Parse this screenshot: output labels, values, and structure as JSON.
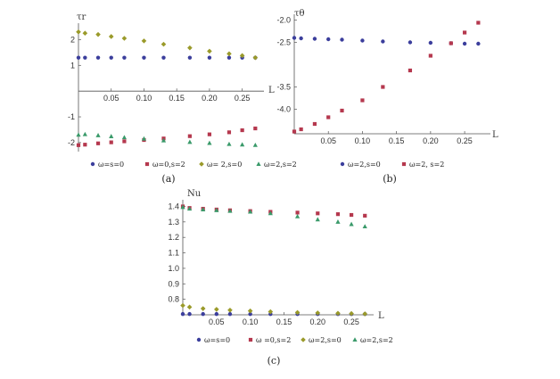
{
  "chart_data": [
    {
      "type": "scatter",
      "panel_label": "(a)",
      "ylabel": "τr",
      "xlabel": "L",
      "xlim": [
        0,
        0.275
      ],
      "ylim": [
        -2.35,
        2.5
      ],
      "x_ticks": [
        0.05,
        0.1,
        0.15,
        0.2,
        0.25
      ],
      "x_tick_labels": [
        "0.05",
        "0.10",
        "0.15",
        "0.20",
        "0.25"
      ],
      "y_ticks": [
        2,
        1,
        -1,
        -2
      ],
      "y_tick_labels": [
        "2",
        "1",
        "-1",
        "-2"
      ],
      "legend_position": "bottom",
      "series": [
        {
          "name": "ω=s=0",
          "color": "#3b3e9c",
          "marker": "circle",
          "x": [
            0.0,
            0.01,
            0.03,
            0.05,
            0.07,
            0.1,
            0.13,
            0.17,
            0.2,
            0.23,
            0.25,
            0.27
          ],
          "y": [
            1.3,
            1.3,
            1.3,
            1.3,
            1.3,
            1.3,
            1.3,
            1.3,
            1.3,
            1.3,
            1.3,
            1.3
          ]
        },
        {
          "name": "ω=0,s=2",
          "color": "#b5384e",
          "marker": "square",
          "x": [
            0.0,
            0.01,
            0.03,
            0.05,
            0.07,
            0.1,
            0.13,
            0.17,
            0.2,
            0.23,
            0.25,
            0.27
          ],
          "y": [
            -2.1,
            -2.08,
            -2.03,
            -1.99,
            -1.95,
            -1.9,
            -1.84,
            -1.75,
            -1.68,
            -1.6,
            -1.52,
            -1.45
          ]
        },
        {
          "name": "ω= 2,s=0",
          "color": "#9a9a2a",
          "marker": "diamond",
          "x": [
            0.0,
            0.01,
            0.03,
            0.05,
            0.07,
            0.1,
            0.13,
            0.17,
            0.2,
            0.23,
            0.25,
            0.27
          ],
          "y": [
            2.3,
            2.25,
            2.2,
            2.12,
            2.05,
            1.95,
            1.82,
            1.68,
            1.55,
            1.45,
            1.38,
            1.3
          ]
        },
        {
          "name": "ω=2,s=2",
          "color": "#3a9a6a",
          "marker": "triangle",
          "x": [
            0.0,
            0.01,
            0.03,
            0.05,
            0.07,
            0.1,
            0.13,
            0.17,
            0.2,
            0.23,
            0.25,
            0.27
          ],
          "y": [
            -1.7,
            -1.68,
            -1.72,
            -1.76,
            -1.8,
            -1.85,
            -1.92,
            -1.98,
            -2.02,
            -2.06,
            -2.08,
            -2.1
          ]
        }
      ]
    },
    {
      "type": "scatter",
      "panel_label": "(b)",
      "ylabel": "τθ",
      "xlabel": "L",
      "xlim": [
        0,
        0.28
      ],
      "ylim": [
        -4.55,
        -1.95
      ],
      "x_ticks": [
        0.05,
        0.1,
        0.15,
        0.2,
        0.25
      ],
      "x_tick_labels": [
        "0.05",
        "0.10",
        "0.15",
        "0.20",
        "0.25"
      ],
      "y_ticks": [
        -2.0,
        -2.5,
        -3.5,
        -4.0
      ],
      "y_tick_labels": [
        "-2.0",
        "-2.5",
        "-3.5",
        "-4.0"
      ],
      "legend_position": "bottom",
      "series": [
        {
          "name": "ω=2,s=0",
          "color": "#3b3e9c",
          "marker": "circle",
          "x": [
            0.0,
            0.01,
            0.03,
            0.05,
            0.07,
            0.1,
            0.13,
            0.17,
            0.2,
            0.23,
            0.25,
            0.27
          ],
          "y": [
            -2.4,
            -2.41,
            -2.42,
            -2.43,
            -2.44,
            -2.46,
            -2.48,
            -2.5,
            -2.51,
            -2.52,
            -2.53,
            -2.53
          ]
        },
        {
          "name": "ω=2, s=2",
          "color": "#b5384e",
          "marker": "square",
          "x": [
            0.0,
            0.01,
            0.03,
            0.05,
            0.07,
            0.1,
            0.13,
            0.17,
            0.2,
            0.23,
            0.25,
            0.27
          ],
          "y": [
            -4.5,
            -4.45,
            -4.33,
            -4.18,
            -4.03,
            -3.8,
            -3.5,
            -3.13,
            -2.8,
            -2.52,
            -2.28,
            -2.06
          ]
        }
      ]
    },
    {
      "type": "scatter",
      "panel_label": "(c)",
      "ylabel": "Nu",
      "xlabel": "L",
      "xlim": [
        0,
        0.275
      ],
      "ylim": [
        0.7,
        1.42
      ],
      "x_ticks": [
        0.05,
        0.1,
        0.15,
        0.2,
        0.25
      ],
      "x_tick_labels": [
        "0.05",
        "0.10",
        "0.15",
        "0.20",
        "0.25"
      ],
      "y_ticks": [
        0.8,
        0.9,
        1.0,
        1.1,
        1.2,
        1.3,
        1.4
      ],
      "y_tick_labels": [
        "0.8",
        "0.9",
        "1.0",
        "1.1",
        "1.2",
        "1.3",
        "1.4"
      ],
      "legend_position": "bottom",
      "series": [
        {
          "name": "ω=s=0",
          "color": "#3b3e9c",
          "marker": "circle",
          "x": [
            0.0,
            0.01,
            0.03,
            0.05,
            0.07,
            0.1,
            0.13,
            0.17,
            0.2,
            0.23,
            0.25,
            0.27
          ],
          "y": [
            0.705,
            0.705,
            0.705,
            0.705,
            0.705,
            0.705,
            0.705,
            0.705,
            0.705,
            0.705,
            0.705,
            0.705
          ]
        },
        {
          "name": "ω =0,s=2",
          "color": "#b5384e",
          "marker": "square",
          "x": [
            0.0,
            0.01,
            0.03,
            0.05,
            0.07,
            0.1,
            0.13,
            0.17,
            0.2,
            0.23,
            0.25,
            0.27
          ],
          "y": [
            1.4,
            1.39,
            1.385,
            1.38,
            1.375,
            1.37,
            1.365,
            1.36,
            1.355,
            1.35,
            1.345,
            1.34
          ]
        },
        {
          "name": "ω=2,s=0",
          "color": "#9a9a2a",
          "marker": "diamond",
          "x": [
            0.0,
            0.01,
            0.03,
            0.05,
            0.07,
            0.1,
            0.13,
            0.17,
            0.2,
            0.23,
            0.25,
            0.27
          ],
          "y": [
            0.76,
            0.75,
            0.74,
            0.735,
            0.73,
            0.725,
            0.72,
            0.715,
            0.712,
            0.71,
            0.708,
            0.706
          ]
        },
        {
          "name": "ω=2,s=2",
          "color": "#3a9a6a",
          "marker": "triangle",
          "x": [
            0.0,
            0.01,
            0.03,
            0.05,
            0.07,
            0.1,
            0.13,
            0.17,
            0.2,
            0.23,
            0.25,
            0.27
          ],
          "y": [
            1.395,
            1.385,
            1.38,
            1.375,
            1.37,
            1.365,
            1.355,
            1.335,
            1.315,
            1.3,
            1.285,
            1.27
          ]
        }
      ]
    }
  ]
}
